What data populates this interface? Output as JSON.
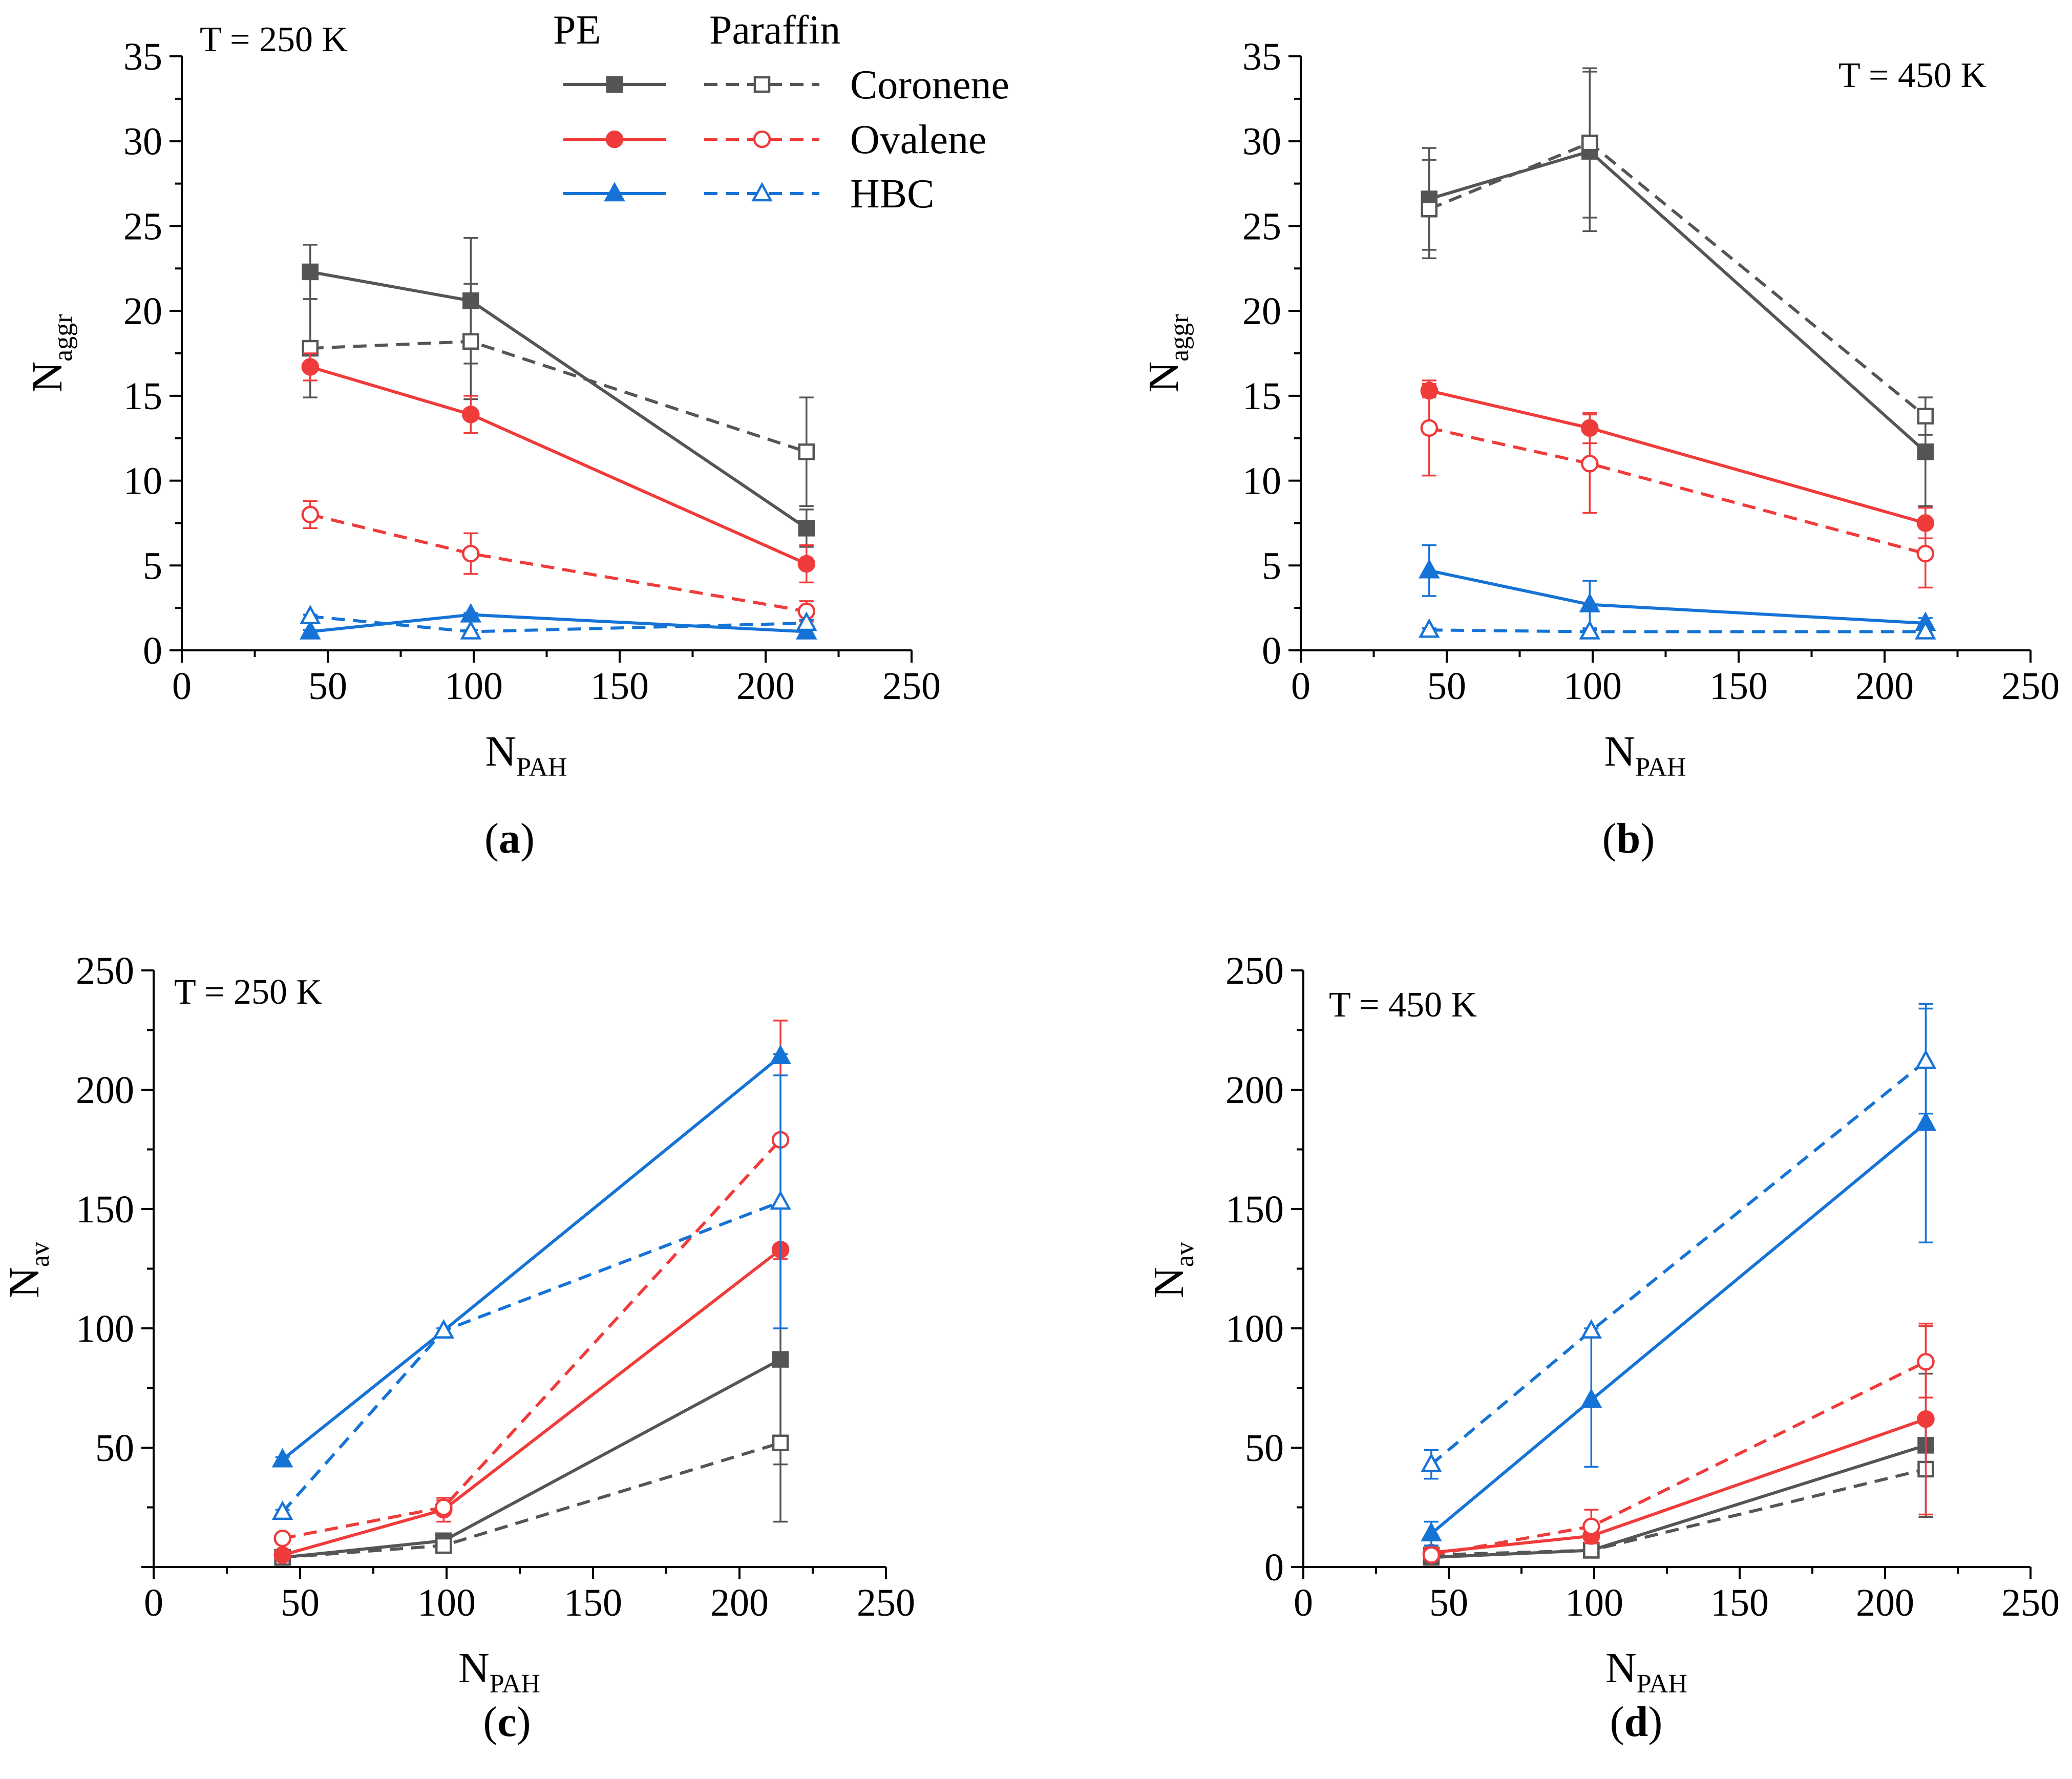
{
  "figure": {
    "legend": {
      "header_pe": "PE",
      "header_paraffin": "Paraffin",
      "entries": [
        "Coronene",
        "Ovalene",
        "HBC"
      ]
    }
  },
  "colors": {
    "Coronene": "#555555",
    "Ovalene": "#f03b3b",
    "HBC": "#1673d6"
  },
  "chart_data": [
    {
      "panel": "a",
      "type": "line",
      "panel_label": "(a)",
      "annotation": "T = 250 K",
      "xlabel_main": "N",
      "xlabel_sub": "PAH",
      "ylabel_main": "N",
      "ylabel_sub": "aggr",
      "xlim": [
        0,
        250
      ],
      "ylim": [
        0,
        35
      ],
      "xticks": [
        0,
        50,
        100,
        150,
        200,
        250
      ],
      "yticks": [
        0,
        5,
        10,
        15,
        20,
        25,
        30,
        35
      ],
      "x": [
        44,
        99,
        214
      ],
      "series": [
        {
          "name": "PE Coronene",
          "molecule": "Coronene",
          "solvent": "PE",
          "values": [
            22.3,
            20.6,
            7.2
          ],
          "err": [
            1.6,
            3.7,
            1.1
          ]
        },
        {
          "name": "Paraffin Coronene",
          "molecule": "Coronene",
          "solvent": "Paraffin",
          "values": [
            17.8,
            18.2,
            11.7
          ],
          "err": [
            2.9,
            3.4,
            3.2
          ]
        },
        {
          "name": "PE Ovalene",
          "molecule": "Ovalene",
          "solvent": "PE",
          "values": [
            16.7,
            13.9,
            5.1
          ],
          "err": [
            0.8,
            1.1,
            1.1
          ]
        },
        {
          "name": "Paraffin Ovalene",
          "molecule": "Ovalene",
          "solvent": "Paraffin",
          "values": [
            8.0,
            5.7,
            2.3
          ],
          "err": [
            0.8,
            1.2,
            0.6
          ]
        },
        {
          "name": "PE HBC",
          "molecule": "HBC",
          "solvent": "PE",
          "values": [
            1.1,
            2.1,
            1.1
          ],
          "err": [
            0.1,
            0.1,
            0.1
          ]
        },
        {
          "name": "Paraffin HBC",
          "molecule": "HBC",
          "solvent": "Paraffin",
          "values": [
            2.0,
            1.1,
            1.6
          ],
          "err": [
            0.1,
            0.1,
            0.2
          ]
        }
      ]
    },
    {
      "panel": "b",
      "type": "line",
      "panel_label": "(b)",
      "annotation": "T = 450 K",
      "xlabel_main": "N",
      "xlabel_sub": "PAH",
      "ylabel_main": "N",
      "ylabel_sub": "aggr",
      "xlim": [
        0,
        250
      ],
      "ylim": [
        0,
        35
      ],
      "xticks": [
        0,
        50,
        100,
        150,
        200,
        250
      ],
      "yticks": [
        0,
        5,
        10,
        15,
        20,
        25,
        30,
        35
      ],
      "x": [
        44,
        99,
        214
      ],
      "series": [
        {
          "name": "PE Coronene",
          "molecule": "Coronene",
          "solvent": "PE",
          "values": [
            26.6,
            29.4,
            11.7
          ],
          "err": [
            3.0,
            4.7,
            3.2
          ]
        },
        {
          "name": "Paraffin Coronene",
          "molecule": "Coronene",
          "solvent": "Paraffin",
          "values": [
            26.0,
            29.9,
            13.8
          ],
          "err": [
            2.9,
            4.4,
            1.1
          ]
        },
        {
          "name": "PE Ovalene",
          "molecule": "Ovalene",
          "solvent": "PE",
          "values": [
            15.3,
            13.1,
            7.5
          ],
          "err": [
            0.4,
            0.9,
            0.9
          ]
        },
        {
          "name": "Paraffin Ovalene",
          "molecule": "Ovalene",
          "solvent": "Paraffin",
          "values": [
            13.1,
            11.0,
            5.7
          ],
          "err": [
            2.8,
            2.9,
            2.0
          ]
        },
        {
          "name": "PE HBC",
          "molecule": "HBC",
          "solvent": "PE",
          "values": [
            4.7,
            2.7,
            1.6
          ],
          "err": [
            1.5,
            1.4,
            0.3
          ]
        },
        {
          "name": "Paraffin HBC",
          "molecule": "HBC",
          "solvent": "Paraffin",
          "values": [
            1.2,
            1.1,
            1.1
          ],
          "err": [
            0.1,
            0.1,
            0.1
          ]
        }
      ]
    },
    {
      "panel": "c",
      "type": "line",
      "panel_label": "(c)",
      "annotation": "T = 250 K",
      "xlabel_main": "N",
      "xlabel_sub": "PAH",
      "ylabel_main": "N",
      "ylabel_sub": "av",
      "xlim": [
        0,
        250
      ],
      "ylim": [
        0,
        250
      ],
      "xticks": [
        0,
        50,
        100,
        150,
        200,
        250
      ],
      "yticks": [
        50,
        100,
        150,
        200,
        250
      ],
      "x": [
        44,
        99,
        214
      ],
      "series": [
        {
          "name": "PE Coronene",
          "molecule": "Coronene",
          "solvent": "PE",
          "values": [
            4,
            11,
            87
          ],
          "err": [
            1,
            2,
            44
          ]
        },
        {
          "name": "Paraffin Coronene",
          "molecule": "Coronene",
          "solvent": "Paraffin",
          "values": [
            4,
            9,
            52
          ],
          "err": [
            1,
            2,
            33
          ]
        },
        {
          "name": "PE Ovalene",
          "molecule": "Ovalene",
          "solvent": "PE",
          "values": [
            5,
            24,
            133
          ],
          "err": [
            1,
            5,
            2
          ]
        },
        {
          "name": "Paraffin Ovalene",
          "molecule": "Ovalene",
          "solvent": "Paraffin",
          "values": [
            12,
            25,
            179
          ],
          "err": [
            1,
            3,
            50
          ]
        },
        {
          "name": "PE HBC",
          "molecule": "HBC",
          "solvent": "PE",
          "values": [
            45,
            99,
            214
          ],
          "err": [
            1,
            1,
            1
          ]
        },
        {
          "name": "Paraffin HBC",
          "molecule": "HBC",
          "solvent": "Paraffin",
          "values": [
            23,
            99,
            153
          ],
          "err": [
            1,
            1,
            53
          ]
        }
      ]
    },
    {
      "panel": "d",
      "type": "line",
      "panel_label": "(d)",
      "annotation": "T = 450 K",
      "xlabel_main": "N",
      "xlabel_sub": "PAH",
      "ylabel_main": "N",
      "ylabel_sub": "av",
      "xlim": [
        0,
        250
      ],
      "ylim": [
        0,
        250
      ],
      "xticks": [
        0,
        50,
        100,
        150,
        200,
        250
      ],
      "yticks": [
        0,
        50,
        100,
        150,
        200,
        250
      ],
      "x": [
        44,
        99,
        214
      ],
      "series": [
        {
          "name": "PE Coronene",
          "molecule": "Coronene",
          "solvent": "PE",
          "values": [
            4,
            7,
            51
          ],
          "err": [
            1,
            1,
            30
          ]
        },
        {
          "name": "Paraffin Coronene",
          "molecule": "Coronene",
          "solvent": "Paraffin",
          "values": [
            5,
            7,
            41
          ],
          "err": [
            1,
            1,
            20
          ]
        },
        {
          "name": "PE Ovalene",
          "molecule": "Ovalene",
          "solvent": "PE",
          "values": [
            6,
            13,
            62
          ],
          "err": [
            1,
            3,
            40
          ]
        },
        {
          "name": "Paraffin Ovalene",
          "molecule": "Ovalene",
          "solvent": "Paraffin",
          "values": [
            5,
            17,
            86
          ],
          "err": [
            1,
            7,
            15
          ]
        },
        {
          "name": "PE HBC",
          "molecule": "HBC",
          "solvent": "PE",
          "values": [
            14,
            70,
            186
          ],
          "err": [
            5,
            28,
            50
          ]
        },
        {
          "name": "Paraffin HBC",
          "molecule": "HBC",
          "solvent": "Paraffin",
          "values": [
            43,
            99,
            212
          ],
          "err": [
            6,
            1,
            22
          ]
        }
      ]
    }
  ]
}
